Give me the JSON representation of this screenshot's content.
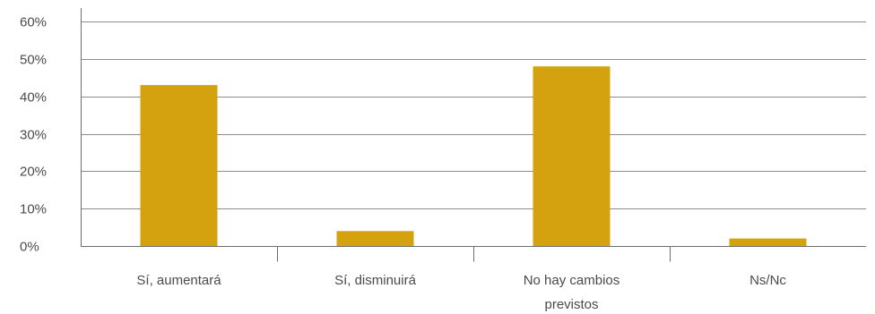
{
  "chart_data": {
    "type": "bar",
    "categories": [
      "Sí, aumentará",
      "Sí, disminuirá",
      "No hay cambios previstos",
      "Ns/Nc"
    ],
    "category_label_lines": [
      [
        "Sí, aumentará"
      ],
      [
        "Sí, disminuirá"
      ],
      [
        "No hay cambios",
        "previstos"
      ],
      [
        "Ns/Nc"
      ]
    ],
    "values": [
      43,
      4,
      48,
      2
    ],
    "value_unit": "%",
    "ylim": [
      0,
      60
    ],
    "yticks": [
      0,
      10,
      20,
      30,
      40,
      50,
      60
    ],
    "ytick_labels": [
      "0%",
      "10%",
      "20%",
      "30%",
      "40%",
      "50%",
      "60%"
    ],
    "grid": true,
    "legend": "none",
    "bar_color": "#D4A10F",
    "title": "",
    "xlabel": "",
    "ylabel": ""
  }
}
